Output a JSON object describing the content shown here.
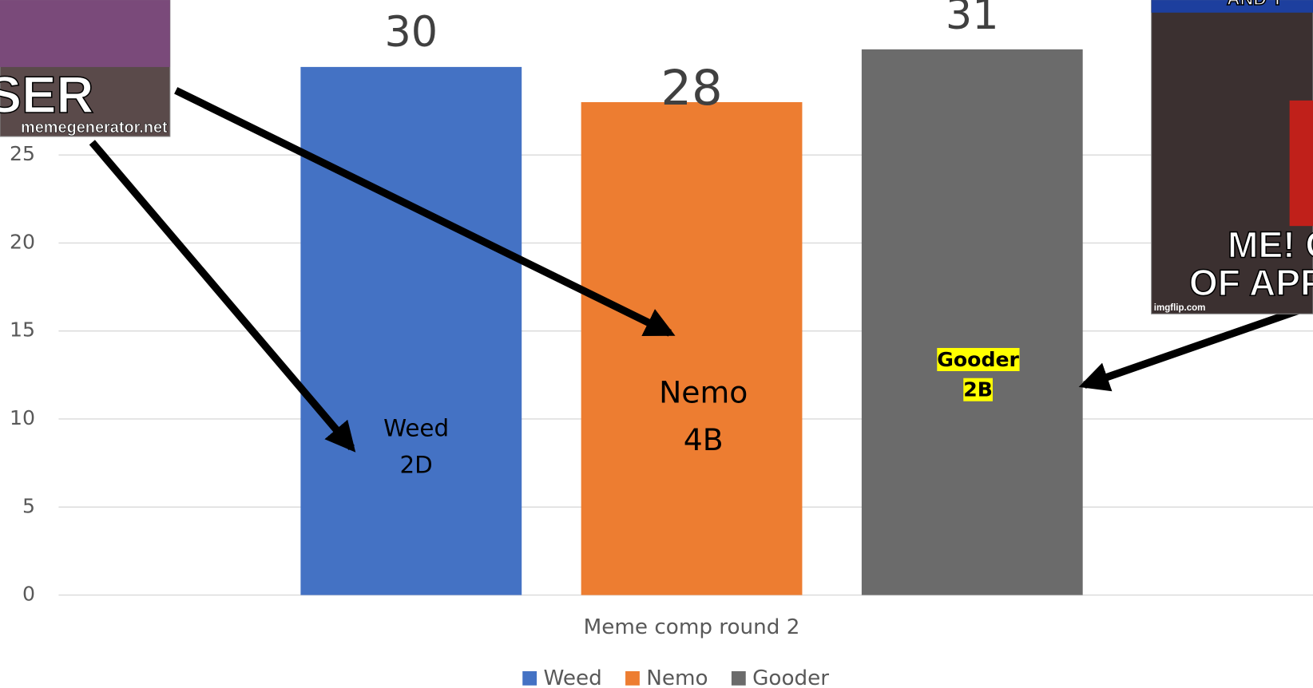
{
  "chart_data": {
    "type": "bar",
    "xlabel": "Meme comp round 2",
    "categories": [
      "Meme comp round 2"
    ],
    "series": [
      {
        "name": "Weed",
        "color": "#4472c4",
        "values": [
          30
        ]
      },
      {
        "name": "Nemo",
        "color": "#ed7d31",
        "values": [
          28
        ]
      },
      {
        "name": "Gooder",
        "color": "#6b6b6b",
        "values": [
          31
        ]
      }
    ],
    "ylim": [
      0,
      33.8
    ],
    "yticks": [
      0,
      5,
      10,
      15,
      20,
      25
    ],
    "grid": true,
    "legend": "bottom",
    "annotations": [
      {
        "lines": [
          "Weed",
          "2D"
        ]
      },
      {
        "lines": [
          "Nemo",
          "4B"
        ]
      },
      {
        "lines": [
          "Gooder",
          "2B"
        ]
      }
    ],
    "memes": [
      {
        "caption": "OSER",
        "source": "memegenerator.net"
      },
      {
        "caption_top": "AND T",
        "caption": [
          "ME! GI",
          "OF APPLA"
        ],
        "source": "imgflip.com"
      }
    ]
  }
}
